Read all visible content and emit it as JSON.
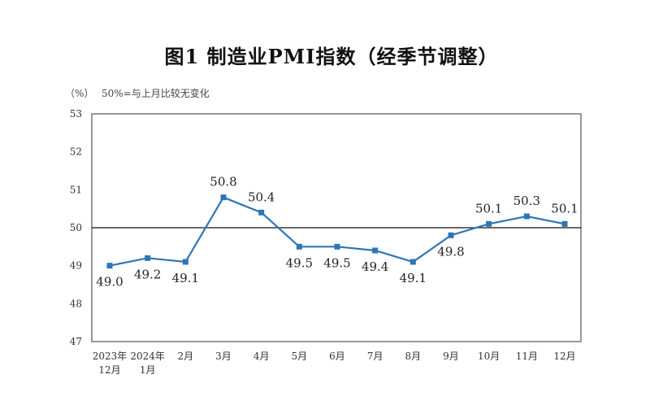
{
  "chart_data": {
    "type": "line",
    "title": "图1  制造业PMI指数（经季节调整）",
    "unit_label": "（%）",
    "note": "50%=与上月比较无变化",
    "categories": [
      [
        "2023年",
        "12月"
      ],
      [
        "2024年",
        "1月"
      ],
      [
        "2月"
      ],
      [
        "3月"
      ],
      [
        "4月"
      ],
      [
        "5月"
      ],
      [
        "6月"
      ],
      [
        "7月"
      ],
      [
        "8月"
      ],
      [
        "9月"
      ],
      [
        "10月"
      ],
      [
        "11月"
      ],
      [
        "12月"
      ]
    ],
    "series": [
      {
        "values": [
          49.0,
          49.2,
          49.1,
          50.8,
          50.4,
          49.5,
          49.5,
          49.4,
          49.1,
          49.8,
          50.1,
          50.3,
          50.1
        ],
        "color": "#2e75b6"
      }
    ],
    "data_labels": [
      "49.0",
      "49.2",
      "49.1",
      "50.8",
      "50.4",
      "49.5",
      "49.5",
      "49.4",
      "49.1",
      "49.8",
      "50.1",
      "50.3",
      "50.1"
    ],
    "ylim": [
      47,
      53
    ],
    "yticks": [
      47,
      48,
      49,
      50,
      51,
      52,
      53
    ],
    "reference_line": 50,
    "grid": false
  }
}
